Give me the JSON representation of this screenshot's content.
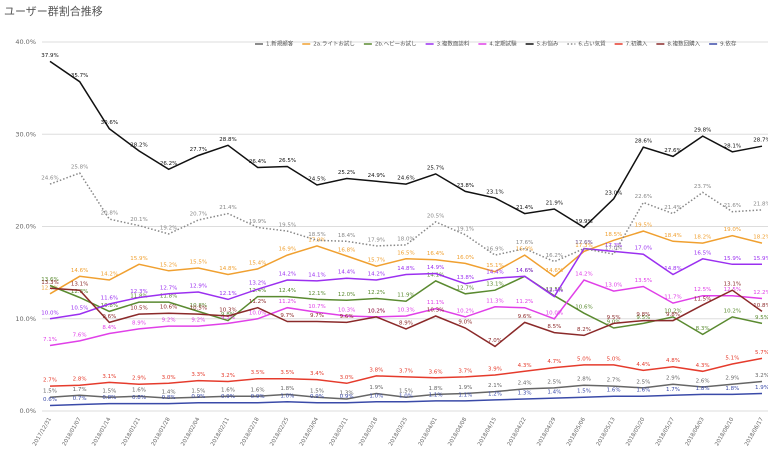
{
  "chart_data": {
    "type": "line",
    "title": "ユーザー群割合推移",
    "x": [
      "2017/12/31",
      "2018/01/07",
      "2018/01/14",
      "2018/01/21",
      "2018/01/28",
      "2018/02/04",
      "2018/02/11",
      "2018/02/18",
      "2018/02/25",
      "2018/03/04",
      "2018/03/11",
      "2018/03/18",
      "2018/03/25",
      "2018/04/01",
      "2018/04/08",
      "2018/04/15",
      "2018/04/22",
      "2018/04/29",
      "2018/05/06",
      "2018/05/13",
      "2018/05/20",
      "2018/05/27",
      "2018/06/03",
      "2018/06/10",
      "2018/06/17"
    ],
    "ylim": [
      0,
      40
    ],
    "yticks": [
      {
        "value": 0,
        "label": "0.0%"
      },
      {
        "value": 10,
        "label": "10.0%"
      },
      {
        "value": 20,
        "label": "20.0%"
      },
      {
        "value": 30,
        "label": "30.0%"
      },
      {
        "value": 40,
        "label": "40.0%"
      }
    ],
    "grid": true,
    "legend": "top",
    "series": [
      {
        "name": "1.新規顧客",
        "color": "#666666",
        "dash": false,
        "values": [
          1.5,
          1.7,
          1.5,
          1.6,
          1.4,
          1.5,
          1.6,
          1.6,
          1.8,
          1.5,
          1.3,
          1.9,
          1.5,
          1.8,
          1.9,
          2.1,
          2.4,
          2.5,
          2.8,
          2.7,
          2.5,
          2.9,
          2.6,
          2.9,
          3.2
        ],
        "value_labels": [
          "1.5%",
          "1.7%",
          "1.5%",
          "1.6%",
          "1.4%",
          "1.5%",
          "1.6%",
          "1.6%",
          "1.8%",
          "1.5%",
          "1.3%",
          "1.9%",
          "1.5%",
          "1.8%",
          "1.9%",
          "2.1%",
          "2.4%",
          "2.5%",
          "2.8%",
          "2.7%",
          "2.5%",
          "2.9%",
          "2.6%",
          "2.9%",
          "3.2%"
        ]
      },
      {
        "name": "2a.ライトお試し",
        "color": "#f0a030",
        "dash": false,
        "values": [
          12.7,
          14.6,
          14.2,
          15.9,
          15.2,
          15.5,
          14.8,
          15.4,
          16.9,
          17.9,
          16.8,
          15.7,
          16.5,
          16.4,
          16.0,
          15.1,
          16.9,
          14.6,
          17.3,
          18.5,
          19.5,
          18.4,
          18.2,
          19.0,
          18.2
        ],
        "value_labels": [
          "12.7%",
          "14.6%",
          "14.2%",
          "15.9%",
          "15.2%",
          "15.5%",
          "14.8%",
          "15.4%",
          "16.9%",
          "17.9%",
          "16.8%",
          "15.7%",
          "16.5%",
          "16.4%",
          "16.0%",
          "15.1%",
          "16.9%",
          "14.6%",
          "17.3%",
          "18.5%",
          "19.5%",
          "18.4%",
          "18.2%",
          "19.0%",
          "18.2%"
        ]
      },
      {
        "name": "2b.ヘビーお試し",
        "color": "#5a8a30",
        "dash": false,
        "values": [
          13.6,
          12.3,
          10.8,
          11.8,
          11.8,
          10.8,
          9.8,
          12.4,
          12.4,
          12.1,
          12.0,
          12.2,
          11.9,
          14.1,
          12.7,
          13.1,
          14.6,
          12.5,
          10.6,
          9.0,
          9.5,
          10.2,
          8.3,
          10.2,
          9.5
        ],
        "value_labels": [
          "13.6%",
          "12.3%",
          "10.8%",
          "11.8%",
          "11.8%",
          "10.8%",
          "9.8%",
          "12.4%",
          "12.4%",
          "12.1%",
          "12.0%",
          "12.2%",
          "11.9%",
          "14.1%",
          "12.7%",
          "13.1%",
          "14.6%",
          "12.5%",
          "10.6%",
          "9.0%",
          "9.5%",
          "10.2%",
          "8.3%",
          "10.2%",
          "9.5%"
        ]
      },
      {
        "name": "3.複数面談料",
        "color": "#9b30f0",
        "dash": false,
        "values": [
          10.0,
          10.5,
          11.6,
          12.3,
          12.7,
          12.9,
          12.1,
          13.2,
          14.2,
          14.1,
          14.4,
          14.2,
          14.8,
          14.9,
          13.8,
          14.4,
          14.6,
          12.4,
          17.6,
          17.3,
          17.0,
          14.8,
          16.5,
          15.9,
          15.9
        ],
        "value_labels": [
          "10.0%",
          "10.5%",
          "11.6%",
          "12.3%",
          "12.7%",
          "12.9%",
          "12.1%",
          "13.2%",
          "14.2%",
          "14.1%",
          "14.4%",
          "14.2%",
          "14.8%",
          "14.9%",
          "13.8%",
          "14.4%",
          "14.6%",
          "12.4%",
          "17.6%",
          "17.3%",
          "17.0%",
          "14.8%",
          "16.5%",
          "15.9%",
          "15.9%"
        ]
      },
      {
        "name": "4.定期試験",
        "color": "#e040e8",
        "dash": false,
        "values": [
          7.1,
          7.6,
          8.4,
          8.9,
          9.2,
          9.2,
          9.5,
          10.0,
          11.2,
          10.7,
          10.3,
          10.2,
          10.3,
          11.1,
          10.2,
          11.3,
          11.2,
          10.0,
          14.2,
          13.0,
          13.5,
          11.7,
          12.5,
          12.5,
          12.2
        ],
        "value_labels": [
          "7.1%",
          "7.6%",
          "8.4%",
          "8.9%",
          "9.2%",
          "9.2%",
          "9.5%",
          "10.0%",
          "11.2%",
          "10.7%",
          "10.3%",
          "10.2%",
          "10.3%",
          "11.1%",
          "10.2%",
          "11.3%",
          "11.2%",
          "10.0%",
          "14.2%",
          "13.0%",
          "13.5%",
          "11.7%",
          "12.5%",
          "12.5%",
          "12.2%"
        ]
      },
      {
        "name": "5.お悩み",
        "color": "#111111",
        "dash": false,
        "values": [
          37.9,
          35.7,
          30.6,
          28.2,
          26.2,
          27.7,
          28.8,
          26.4,
          26.5,
          24.5,
          25.2,
          24.9,
          24.6,
          25.7,
          23.8,
          23.1,
          21.4,
          21.9,
          19.9,
          23.0,
          28.6,
          27.6,
          29.8,
          28.1,
          28.7
        ],
        "value_labels": [
          "37.9%",
          "35.7%",
          "30.6%",
          "28.2%",
          "26.2%",
          "27.7%",
          "28.8%",
          "26.4%",
          "26.5%",
          "24.5%",
          "25.2%",
          "24.9%",
          "24.6%",
          "25.7%",
          "23.8%",
          "23.1%",
          "21.4%",
          "21.9%",
          "19.9%",
          "23.0%",
          "28.6%",
          "27.6%",
          "29.8%",
          "28.1%",
          "28.7%"
        ]
      },
      {
        "name": "6.占い気質",
        "color": "#888888",
        "dash": true,
        "values": [
          24.6,
          25.8,
          20.8,
          20.1,
          19.2,
          20.7,
          21.4,
          19.9,
          19.5,
          18.5,
          18.4,
          17.9,
          18.0,
          20.5,
          19.1,
          16.9,
          17.6,
          16.2,
          17.6,
          17.0,
          22.6,
          21.4,
          23.7,
          21.6,
          21.8
        ],
        "value_labels": [
          "24.6%",
          "25.8%",
          "20.8%",
          "20.1%",
          "19.2%",
          "20.7%",
          "21.4%",
          "19.9%",
          "19.5%",
          "18.5%",
          "18.4%",
          "17.9%",
          "18.0%",
          "20.5%",
          "19.1%",
          "16.9%",
          "17.6%",
          "16.2%",
          "17.6%",
          "17.0%",
          "22.6%",
          "21.4%",
          "23.7%",
          "21.6%",
          "21.8%"
        ]
      },
      {
        "name": "7.初購入",
        "color": "#e53b2c",
        "dash": false,
        "values": [
          2.7,
          2.8,
          3.1,
          2.9,
          3.0,
          3.3,
          3.2,
          3.5,
          3.5,
          3.4,
          3.0,
          3.8,
          3.7,
          3.6,
          3.7,
          3.9,
          4.3,
          4.7,
          5.0,
          5.0,
          4.4,
          4.8,
          4.3,
          5.1,
          5.7
        ],
        "value_labels": [
          "2.7%",
          "2.8%",
          "3.1%",
          "2.9%",
          "3.0%",
          "3.3%",
          "3.2%",
          "3.5%",
          "3.5%",
          "3.4%",
          "3.0%",
          "3.8%",
          "3.7%",
          "3.6%",
          "3.7%",
          "3.9%",
          "4.3%",
          "4.7%",
          "5.0%",
          "5.0%",
          "4.4%",
          "4.8%",
          "4.3%",
          "5.1%",
          "5.7%"
        ]
      },
      {
        "name": "8.複数回購入",
        "color": "#8b2a2a",
        "dash": false,
        "values": [
          13.3,
          13.1,
          9.6,
          10.5,
          10.6,
          10.5,
          10.3,
          11.2,
          9.7,
          9.7,
          9.6,
          10.2,
          8.9,
          10.3,
          9.0,
          7.0,
          9.6,
          8.5,
          8.2,
          9.5,
          9.8,
          9.8,
          11.5,
          13.1,
          10.8
        ],
        "value_labels": [
          "13.3%",
          "13.1%",
          "9.6%",
          "10.5%",
          "10.6%",
          "10.5%",
          "10.3%",
          "11.2%",
          "9.7%",
          "9.7%",
          "9.6%",
          "10.2%",
          "8.9%",
          "10.3%",
          "9.0%",
          "7.0%",
          "9.6%",
          "8.5%",
          "8.2%",
          "9.5%",
          "9.8%",
          "9.8%",
          "11.5%",
          "13.1%",
          "10.8%"
        ]
      },
      {
        "name": "9.依存",
        "color": "#3a4aa8",
        "dash": false,
        "values": [
          0.6,
          0.7,
          0.8,
          0.8,
          0.8,
          0.9,
          0.9,
          0.9,
          1.0,
          0.9,
          0.9,
          1.0,
          1.0,
          1.1,
          1.1,
          1.2,
          1.3,
          1.4,
          1.5,
          1.6,
          1.6,
          1.7,
          1.8,
          1.8,
          1.9
        ],
        "value_labels": [
          "0.6%",
          "0.7%",
          "0.8%",
          "0.8%",
          "0.8%",
          "0.9%",
          "0.9%",
          "0.9%",
          "1.0%",
          "0.9%",
          "0.9%",
          "1.0%",
          "1.0%",
          "1.1%",
          "1.1%",
          "1.2%",
          "1.3%",
          "1.4%",
          "1.5%",
          "1.6%",
          "1.6%",
          "1.7%",
          "1.8%",
          "1.8%",
          "1.9%"
        ]
      }
    ]
  }
}
